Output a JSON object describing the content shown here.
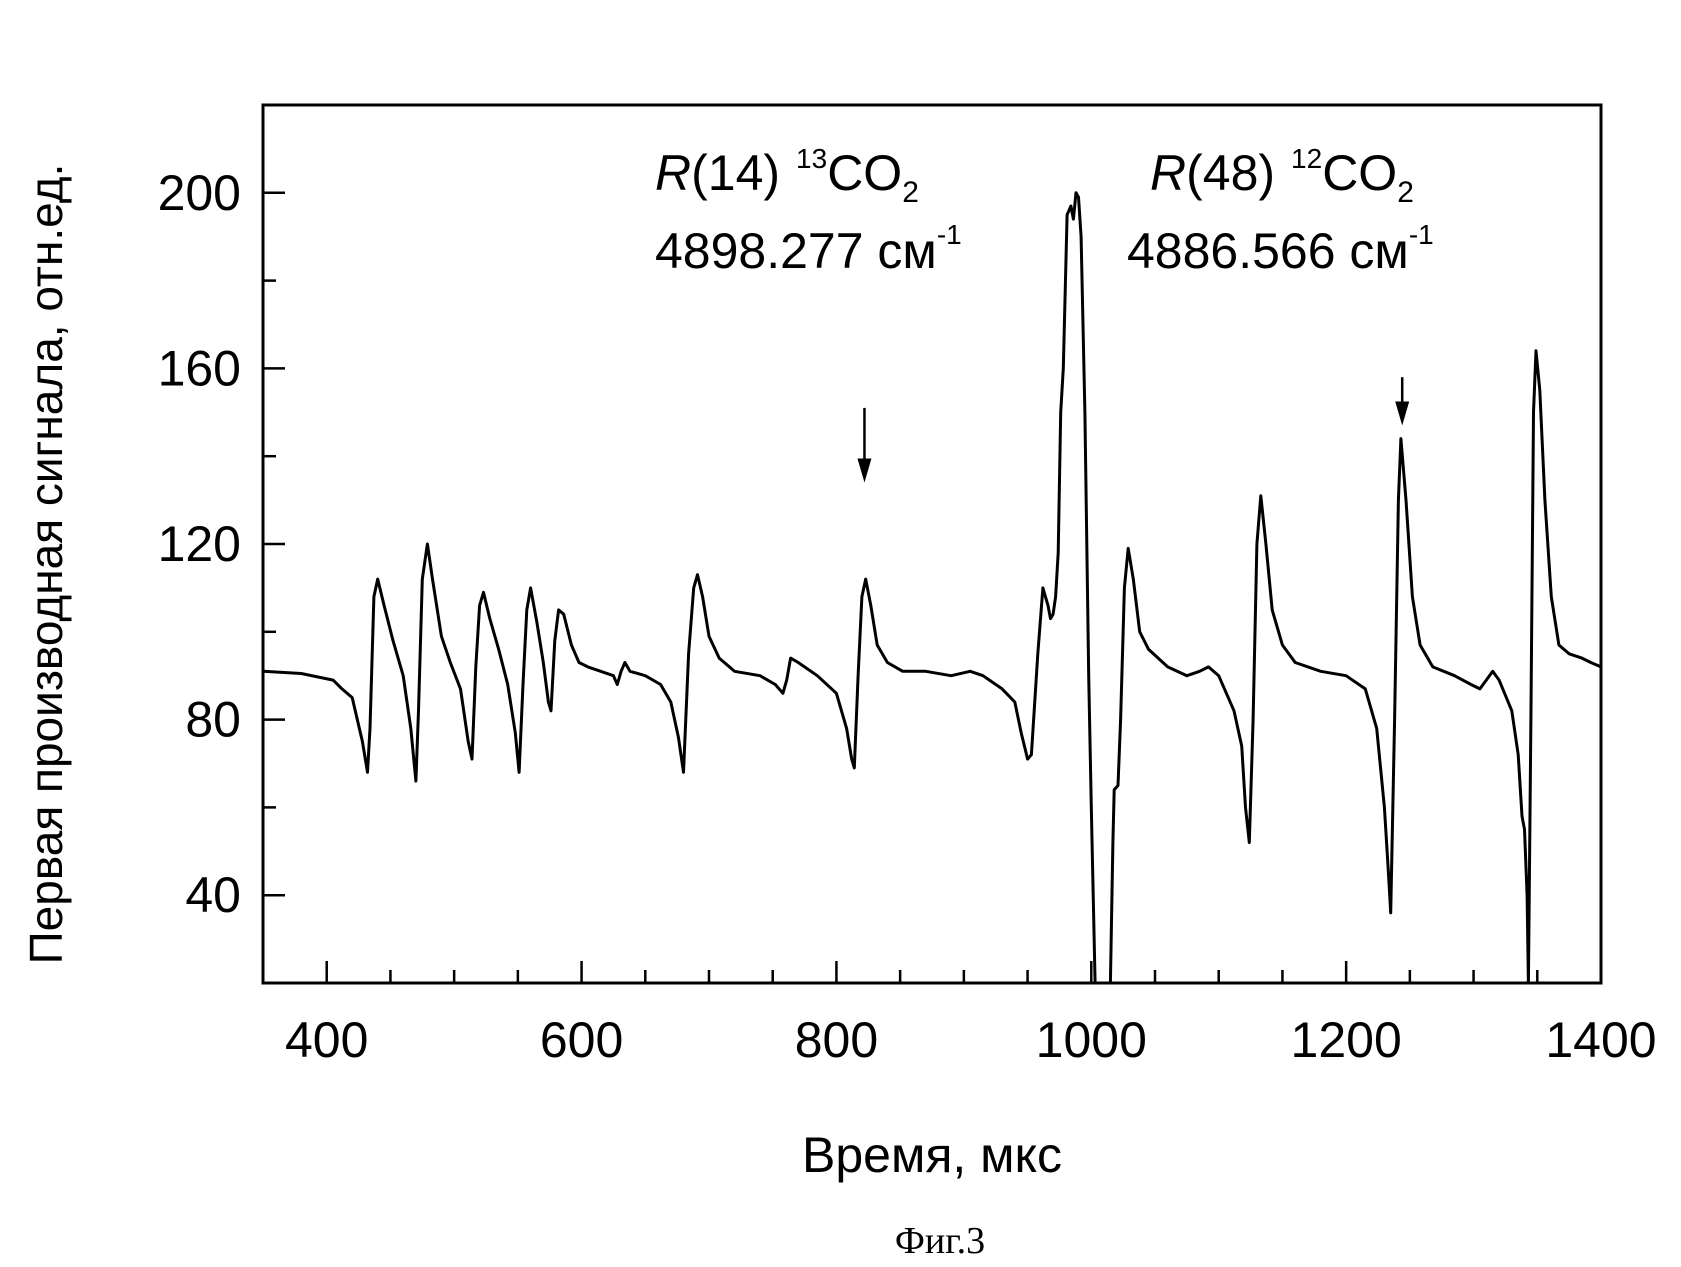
{
  "figure_caption": "Фиг.3",
  "chart_data": {
    "type": "line",
    "xlabel": "Время, мкс",
    "ylabel": "Первая производная сигнала, отн.ед.",
    "xlim": [
      350,
      1400
    ],
    "ylim": [
      20,
      220
    ],
    "x_ticks": [
      400,
      600,
      800,
      1000,
      1200,
      1400
    ],
    "x_minor_step": 50,
    "y_ticks": [
      40,
      80,
      120,
      160,
      200
    ],
    "y_minor_step": 20,
    "grid": false,
    "line_color": "#000000",
    "annotations": [
      {
        "italic_prefix": "R",
        "label": "(14)",
        "isotope_mass": "13",
        "molecule": "CO",
        "subscript": "2",
        "wavenumber": "4898.277 см",
        "exponent": "-1",
        "arrow_x": 822,
        "arrow_from_y": 151,
        "arrow_to_y": 134
      },
      {
        "italic_prefix": "R",
        "label": "(48)",
        "isotope_mass": "12",
        "molecule": "CO",
        "subscript": "2",
        "wavenumber": "4886.566 см",
        "exponent": "-1",
        "arrow_x": 1244,
        "arrow_from_y": 158,
        "arrow_to_y": 147
      }
    ],
    "series": [
      {
        "points": [
          [
            350,
            91
          ],
          [
            380,
            90.5
          ],
          [
            405,
            89
          ],
          [
            412,
            87
          ],
          [
            420,
            85
          ],
          [
            428,
            75
          ],
          [
            432,
            68
          ],
          [
            434,
            78
          ],
          [
            437,
            108
          ],
          [
            440,
            112
          ],
          [
            445,
            106
          ],
          [
            452,
            98
          ],
          [
            460,
            90
          ],
          [
            466,
            78
          ],
          [
            470,
            66
          ],
          [
            472,
            82
          ],
          [
            475,
            112
          ],
          [
            479,
            120
          ],
          [
            483,
            112
          ],
          [
            490,
            99
          ],
          [
            497,
            93
          ],
          [
            505,
            87
          ],
          [
            511,
            75
          ],
          [
            514,
            71
          ],
          [
            517,
            92
          ],
          [
            520,
            106
          ],
          [
            523,
            109
          ],
          [
            528,
            103
          ],
          [
            535,
            96
          ],
          [
            542,
            88
          ],
          [
            548,
            77
          ],
          [
            551,
            68
          ],
          [
            554,
            88
          ],
          [
            557,
            105
          ],
          [
            560,
            110
          ],
          [
            565,
            102
          ],
          [
            570,
            93
          ],
          [
            574,
            84
          ],
          [
            576,
            82
          ],
          [
            579,
            98
          ],
          [
            582,
            105
          ],
          [
            586,
            104
          ],
          [
            592,
            97
          ],
          [
            598,
            93
          ],
          [
            605,
            92
          ],
          [
            615,
            91
          ],
          [
            625,
            90
          ],
          [
            628,
            88
          ],
          [
            631,
            91
          ],
          [
            634,
            93
          ],
          [
            638,
            91
          ],
          [
            650,
            90
          ],
          [
            662,
            88
          ],
          [
            670,
            84
          ],
          [
            676,
            76
          ],
          [
            680,
            68
          ],
          [
            684,
            95
          ],
          [
            688,
            110
          ],
          [
            691,
            113
          ],
          [
            695,
            108
          ],
          [
            700,
            99
          ],
          [
            708,
            94
          ],
          [
            720,
            91
          ],
          [
            740,
            90
          ],
          [
            752,
            88
          ],
          [
            758,
            86
          ],
          [
            761,
            89
          ],
          [
            764,
            94
          ],
          [
            770,
            93
          ],
          [
            785,
            90
          ],
          [
            800,
            86
          ],
          [
            808,
            78
          ],
          [
            812,
            71
          ],
          [
            814,
            69
          ],
          [
            817,
            90
          ],
          [
            820,
            108
          ],
          [
            823,
            112
          ],
          [
            827,
            106
          ],
          [
            832,
            97
          ],
          [
            840,
            93
          ],
          [
            852,
            91
          ],
          [
            870,
            91
          ],
          [
            890,
            90
          ],
          [
            905,
            91
          ],
          [
            915,
            90
          ],
          [
            930,
            87
          ],
          [
            940,
            84
          ],
          [
            945,
            77
          ],
          [
            950,
            71
          ],
          [
            953,
            72
          ],
          [
            958,
            95
          ],
          [
            962,
            110
          ],
          [
            966,
            106
          ],
          [
            968,
            103
          ],
          [
            970,
            104
          ],
          [
            972,
            108
          ],
          [
            974,
            118
          ],
          [
            976,
            150
          ],
          [
            978,
            160
          ],
          [
            981,
            195
          ],
          [
            984,
            197
          ],
          [
            986,
            194
          ],
          [
            988,
            200
          ],
          [
            990,
            199
          ],
          [
            992,
            190
          ],
          [
            995,
            150
          ],
          [
            998,
            90
          ],
          [
            1000,
            60
          ],
          [
            1003,
            20
          ],
          [
            1015,
            20
          ],
          [
            1017,
            52
          ],
          [
            1018,
            64
          ],
          [
            1021,
            65
          ],
          [
            1023,
            80
          ],
          [
            1026,
            110
          ],
          [
            1029,
            119
          ],
          [
            1033,
            112
          ],
          [
            1038,
            100
          ],
          [
            1045,
            96
          ],
          [
            1060,
            92
          ],
          [
            1075,
            90
          ],
          [
            1085,
            91
          ],
          [
            1092,
            92
          ],
          [
            1100,
            90
          ],
          [
            1112,
            82
          ],
          [
            1118,
            74
          ],
          [
            1121,
            60
          ],
          [
            1124,
            52
          ],
          [
            1127,
            80
          ],
          [
            1130,
            120
          ],
          [
            1133,
            131
          ],
          [
            1137,
            120
          ],
          [
            1142,
            105
          ],
          [
            1150,
            97
          ],
          [
            1160,
            93
          ],
          [
            1180,
            91
          ],
          [
            1200,
            90
          ],
          [
            1215,
            87
          ],
          [
            1224,
            78
          ],
          [
            1230,
            60
          ],
          [
            1233,
            46
          ],
          [
            1235,
            36
          ],
          [
            1238,
            80
          ],
          [
            1241,
            130
          ],
          [
            1243,
            144
          ],
          [
            1247,
            130
          ],
          [
            1252,
            108
          ],
          [
            1258,
            97
          ],
          [
            1268,
            92
          ],
          [
            1285,
            90
          ],
          [
            1298,
            88
          ],
          [
            1305,
            87
          ],
          [
            1310,
            89
          ],
          [
            1315,
            91
          ],
          [
            1320,
            89
          ],
          [
            1330,
            82
          ],
          [
            1335,
            72
          ],
          [
            1338,
            58
          ],
          [
            1340,
            55
          ],
          [
            1342,
            40
          ],
          [
            1343,
            20
          ],
          [
            1345,
            80
          ],
          [
            1347,
            150
          ],
          [
            1349,
            164
          ],
          [
            1352,
            155
          ],
          [
            1356,
            130
          ],
          [
            1361,
            108
          ],
          [
            1367,
            97
          ],
          [
            1375,
            95
          ],
          [
            1385,
            94
          ],
          [
            1392,
            93
          ],
          [
            1400,
            92
          ]
        ]
      }
    ]
  }
}
